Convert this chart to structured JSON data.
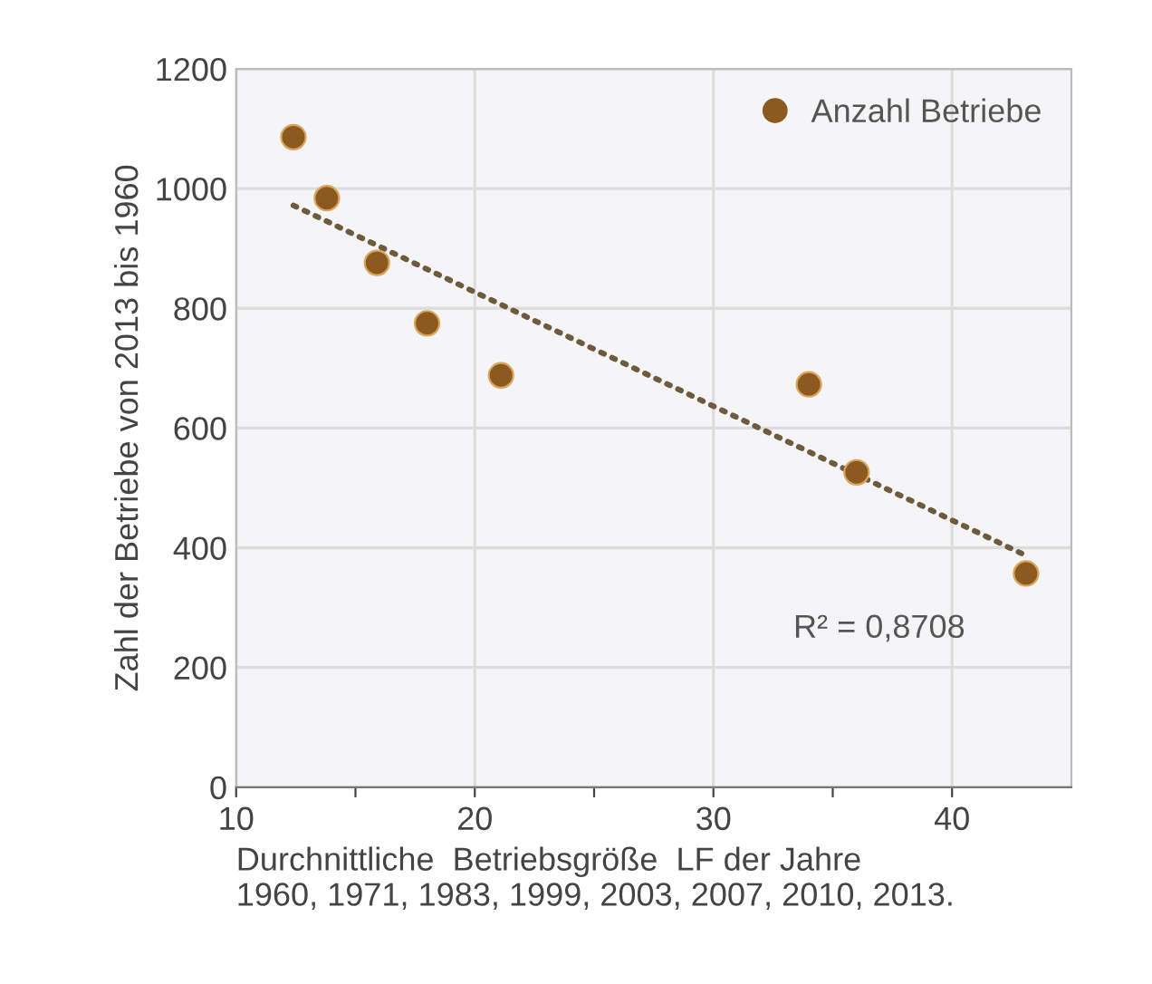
{
  "chart_data": {
    "type": "scatter",
    "xlabel": "Durchnittliche  Betriebsgröße  LF der Jahre\n1960, 1971, 1983, 1999, 2003, 2007, 2010, 2013.",
    "ylabel": "Zahl der Betriebe von 2013 bis 1960",
    "series": [
      {
        "name": "Anzahl Betriebe",
        "color": "#8c5a1e",
        "marker": "circle",
        "x": [
          12.4,
          13.8,
          15.9,
          18.0,
          21.1,
          34.0,
          36.0,
          43.1
        ],
        "values": [
          1086,
          984,
          876,
          775,
          688,
          673,
          526,
          357
        ]
      },
      {
        "type": "line",
        "color": "#6e5a3c",
        "line_style": "dotted",
        "x": [
          12.4,
          43.1
        ],
        "values": [
          972,
          387
        ]
      }
    ],
    "annotations": [
      "R² = 0,8708"
    ],
    "xlim": [
      10,
      45
    ],
    "ylim": [
      0,
      1200
    ],
    "xticks": [
      10,
      {
        "value": 15,
        "label": null
      },
      20,
      {
        "value": 25,
        "label": null
      },
      30,
      {
        "value": 35,
        "label": null
      },
      40
    ],
    "yticks": [
      0,
      200,
      400,
      600,
      800,
      1000,
      1200
    ],
    "grid": true,
    "legend": "top right"
  }
}
